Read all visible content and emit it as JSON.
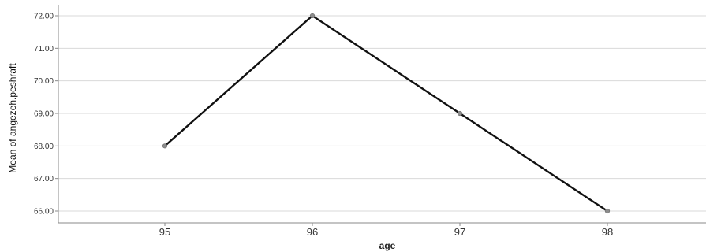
{
  "chart_data": {
    "type": "line",
    "x": [
      "95",
      "96",
      "97",
      "98"
    ],
    "series": [
      {
        "values": [
          68.0,
          72.0,
          69.0,
          66.0
        ]
      }
    ],
    "xlabel": "age",
    "ylabel": "Mean of angezeh.peshraft",
    "ylim": [
      65.6,
      72.3
    ],
    "yticks": [
      "66.00",
      "67.00",
      "68.00",
      "69.00",
      "70.00",
      "71.00",
      "72.00"
    ],
    "grid": true,
    "legend": "none",
    "colors": {
      "line": "#111111",
      "marker": "#8c8c8c",
      "grid": "#d9d9d9",
      "axis": "#888888"
    }
  }
}
